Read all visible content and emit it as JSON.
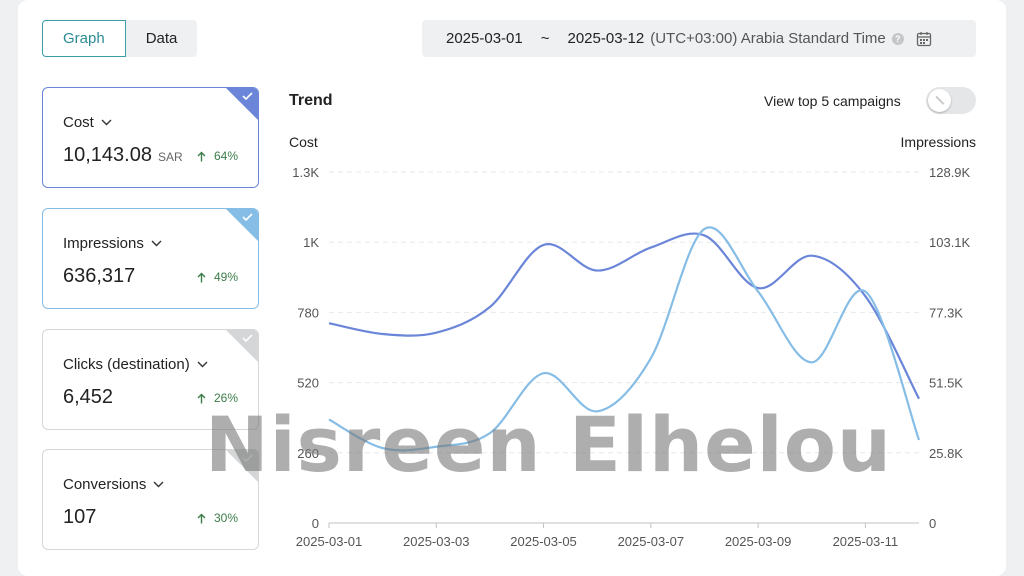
{
  "tabs": [
    {
      "label": "Graph"
    },
    {
      "label": "Data"
    }
  ],
  "date_range": {
    "start": "2025-03-01",
    "separator": "~",
    "end": "2025-03-12",
    "timezone": "(UTC+03:00) Arabia Standard Time"
  },
  "metrics": [
    {
      "name": "Cost",
      "value": "10,143.08",
      "unit": "SAR",
      "change": "64%",
      "selected": true
    },
    {
      "name": "Impressions",
      "value": "636,317",
      "unit": "",
      "change": "49%",
      "selected": true
    },
    {
      "name": "Clicks (destination)",
      "value": "6,452",
      "unit": "",
      "change": "26%",
      "selected": false
    },
    {
      "name": "Conversions",
      "value": "107",
      "unit": "",
      "change": "30%",
      "selected": false
    }
  ],
  "trend": {
    "title": "Trend",
    "toggle_label": "View top 5 campaigns",
    "toggle_on": false
  },
  "watermark": "Nisreen Elhelou",
  "colors": {
    "accent": "#3b9ea6",
    "cost_line": "#6b86d8",
    "impr_line": "#86bde6",
    "up": "#3c7d4a"
  },
  "chart_data": {
    "type": "line",
    "x": [
      "2025-03-01",
      "2025-03-02",
      "2025-03-03",
      "2025-03-04",
      "2025-03-05",
      "2025-03-06",
      "2025-03-07",
      "2025-03-08",
      "2025-03-09",
      "2025-03-10",
      "2025-03-11",
      "2025-03-12"
    ],
    "x_tick_labels": [
      "2025-03-01",
      "2025-03-03",
      "2025-03-05",
      "2025-03-07",
      "2025-03-09",
      "2025-03-11"
    ],
    "ylabel_left": "Cost",
    "ylabel_right": "Impressions",
    "y_left_ticks": [
      "0",
      "260",
      "520",
      "780",
      "1K",
      "1.3K"
    ],
    "y_right_ticks": [
      "0",
      "25.8K",
      "51.5K",
      "77.3K",
      "103.1K",
      "128.9K"
    ],
    "y_left_range": [
      0,
      1300
    ],
    "y_right_range": [
      0,
      128900
    ],
    "grid": true,
    "series": [
      {
        "name": "Cost",
        "axis": "left",
        "values": [
          740,
          700,
          705,
          800,
          1030,
          935,
          1020,
          1065,
          870,
          990,
          840,
          460
        ]
      },
      {
        "name": "Impressions",
        "axis": "right",
        "values": [
          38000,
          27500,
          28000,
          33000,
          55000,
          41000,
          60500,
          108000,
          85000,
          59000,
          85000,
          30500
        ]
      }
    ]
  }
}
